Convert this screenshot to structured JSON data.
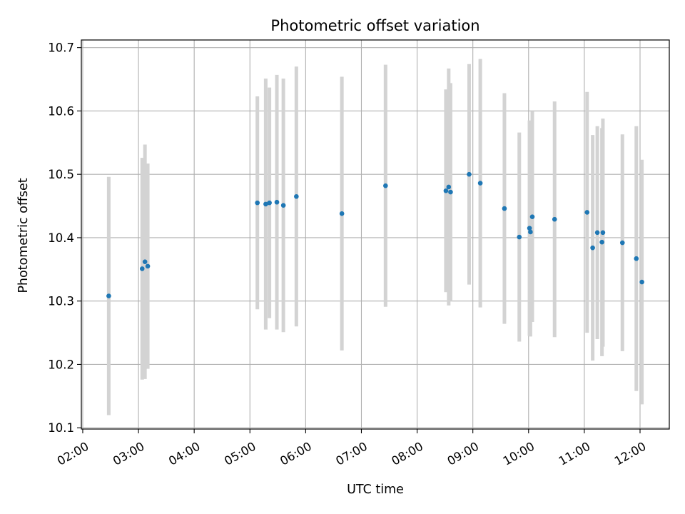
{
  "chart_data": {
    "type": "scatter",
    "title": "Photometric offset variation",
    "xlabel": "UTC time",
    "ylabel": "Photometric offset",
    "x_tick_labels": [
      "02:00",
      "03:00",
      "04:00",
      "05:00",
      "06:00",
      "07:00",
      "08:00",
      "09:00",
      "10:00",
      "11:00",
      "12:00"
    ],
    "x_tick_hours": [
      2,
      3,
      4,
      5,
      6,
      7,
      8,
      9,
      10,
      11,
      12
    ],
    "y_tick_labels": [
      "10.1",
      "10.2",
      "10.3",
      "10.4",
      "10.5",
      "10.6",
      "10.7"
    ],
    "y_tick_values": [
      10.1,
      10.2,
      10.3,
      10.4,
      10.5,
      10.6,
      10.7
    ],
    "xlim_hours": [
      1.975,
      12.525
    ],
    "ylim": [
      10.098,
      10.712
    ],
    "grid": true,
    "point_color": "#1f77b4",
    "errorbar_color": "#d3d3d3",
    "points": [
      {
        "t": "02:28",
        "y": 10.308,
        "err": 0.188
      },
      {
        "t": "03:04",
        "y": 10.351,
        "err": 0.175
      },
      {
        "t": "03:07",
        "y": 10.362,
        "err": 0.185
      },
      {
        "t": "03:10",
        "y": 10.355,
        "err": 0.162
      },
      {
        "t": "05:08",
        "y": 10.455,
        "err": 0.168
      },
      {
        "t": "05:17",
        "y": 10.453,
        "err": 0.198
      },
      {
        "t": "05:21",
        "y": 10.455,
        "err": 0.182
      },
      {
        "t": "05:29",
        "y": 10.456,
        "err": 0.201
      },
      {
        "t": "05:36",
        "y": 10.451,
        "err": 0.2
      },
      {
        "t": "05:50",
        "y": 10.465,
        "err": 0.205
      },
      {
        "t": "06:39",
        "y": 10.438,
        "err": 0.216
      },
      {
        "t": "07:26",
        "y": 10.482,
        "err": 0.191
      },
      {
        "t": "08:31",
        "y": 10.474,
        "err": 0.16
      },
      {
        "t": "08:34",
        "y": 10.48,
        "err": 0.187
      },
      {
        "t": "08:36",
        "y": 10.472,
        "err": 0.172
      },
      {
        "t": "08:56",
        "y": 10.5,
        "err": 0.174
      },
      {
        "t": "09:08",
        "y": 10.486,
        "err": 0.196
      },
      {
        "t": "09:34",
        "y": 10.446,
        "err": 0.182
      },
      {
        "t": "09:50",
        "y": 10.401,
        "err": 0.165
      },
      {
        "t": "10:01",
        "y": 10.415,
        "err": 0.17
      },
      {
        "t": "10:02",
        "y": 10.409,
        "err": 0.165
      },
      {
        "t": "10:04",
        "y": 10.433,
        "err": 0.166
      },
      {
        "t": "10:28",
        "y": 10.429,
        "err": 0.186
      },
      {
        "t": "11:03",
        "y": 10.44,
        "err": 0.19
      },
      {
        "t": "11:09",
        "y": 10.384,
        "err": 0.178
      },
      {
        "t": "11:14",
        "y": 10.408,
        "err": 0.168
      },
      {
        "t": "11:19",
        "y": 10.393,
        "err": 0.18
      },
      {
        "t": "11:20",
        "y": 10.408,
        "err": 0.18
      },
      {
        "t": "11:41",
        "y": 10.392,
        "err": 0.171
      },
      {
        "t": "11:56",
        "y": 10.367,
        "err": 0.209
      },
      {
        "t": "12:02",
        "y": 10.33,
        "err": 0.193
      }
    ]
  }
}
